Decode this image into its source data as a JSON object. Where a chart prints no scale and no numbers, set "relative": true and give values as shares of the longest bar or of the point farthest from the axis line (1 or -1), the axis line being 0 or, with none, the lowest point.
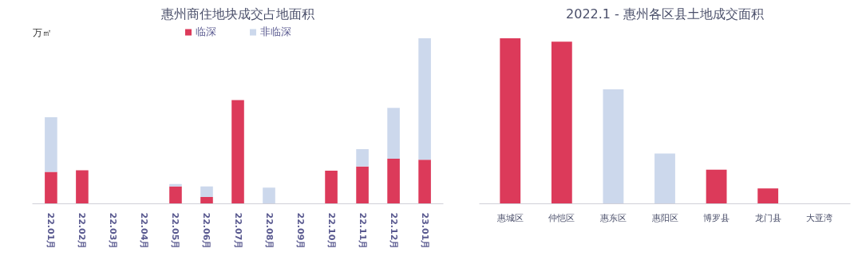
{
  "chart_data": [
    {
      "type": "bar",
      "title": "惠州商住地块成交占地面积",
      "ylabel": "万㎡",
      "relative": true,
      "stacked": true,
      "legend": "top",
      "categories": [
        "22.01月",
        "22.02月",
        "22.03月",
        "22.04月",
        "22.05月",
        "22.06月",
        "22.07月",
        "22.08月",
        "22.09月",
        "22.10月",
        "22.11月",
        "22.12月",
        "23.01月"
      ],
      "series": [
        {
          "name": "临深",
          "color": "#dc3a5a",
          "values": [
            0.193,
            0.202,
            0,
            0,
            0.105,
            0.041,
            0.627,
            0,
            0,
            0.2,
            0.225,
            0.273,
            0.266
          ]
        },
        {
          "name": "非临深",
          "color": "#ccd8ec",
          "values": [
            0.33,
            0,
            0,
            0,
            0.014,
            0.064,
            0,
            0.098,
            0,
            0,
            0.105,
            0.307,
            0.734
          ]
        }
      ]
    },
    {
      "type": "bar",
      "title": "2022.1 - 惠州各区县土地成交面积",
      "relative": true,
      "categories": [
        "惠城区",
        "仲恺区",
        "惠东区",
        "惠阳区",
        "博罗县",
        "龙门县",
        "大亚湾"
      ],
      "values": [
        1,
        0.98,
        0.692,
        0.304,
        0.206,
        0.093,
        0
      ],
      "colors": [
        "#dc3a5a",
        "#dc3a5a",
        "#ccd8ec",
        "#ccd8ec",
        "#dc3a5a",
        "#dc3a5a",
        "#dc3a5a"
      ]
    }
  ]
}
